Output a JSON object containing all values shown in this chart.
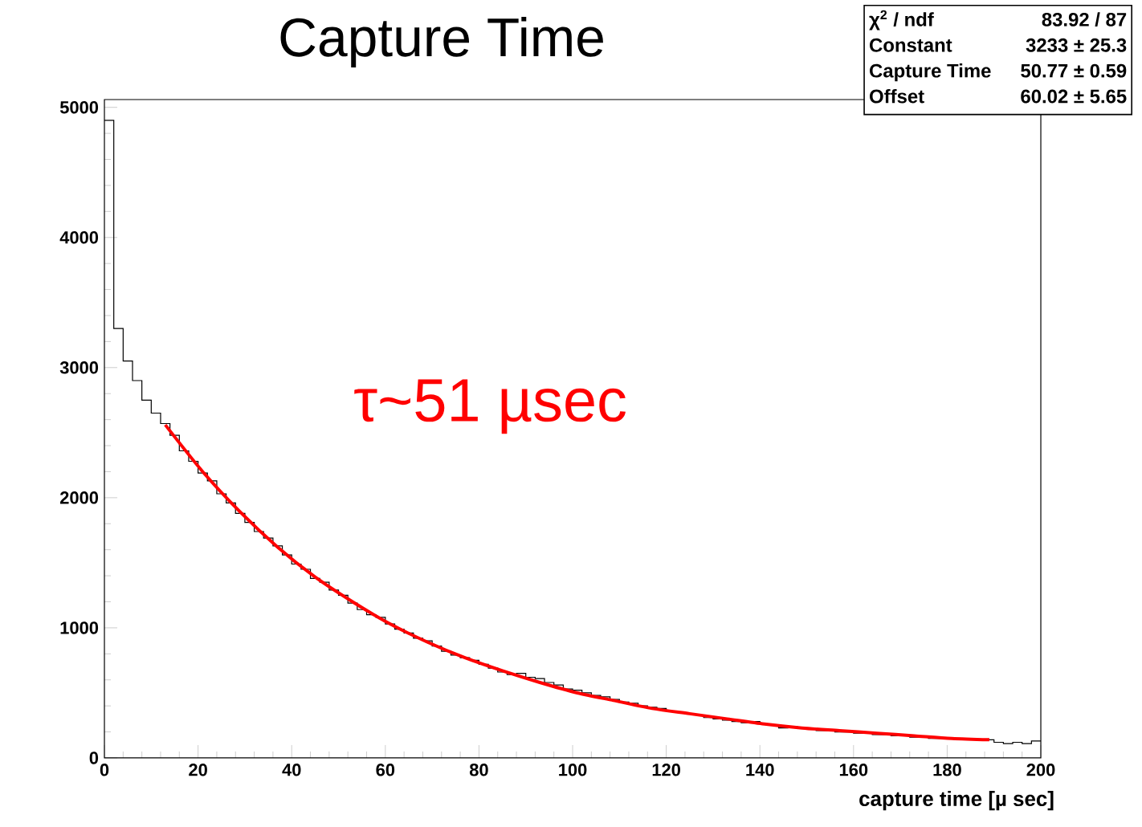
{
  "chart_data": {
    "type": "histogram",
    "title": "Capture Time",
    "xlabel": "capture time [µ sec]",
    "xlim": [
      0,
      200
    ],
    "ylim": [
      0,
      5060
    ],
    "xticks": [
      0,
      20,
      40,
      60,
      80,
      100,
      120,
      140,
      160,
      180,
      200
    ],
    "yticks": [
      0,
      1000,
      2000,
      3000,
      4000,
      5000
    ],
    "series": [
      {
        "color": "#000000",
        "bins": [
          0,
          2,
          4,
          6,
          8,
          10,
          12,
          14,
          16,
          18,
          20,
          22,
          24,
          26,
          28,
          30,
          32,
          34,
          36,
          38,
          40,
          42,
          44,
          46,
          48,
          50,
          52,
          54,
          56,
          58,
          60,
          62,
          64,
          66,
          68,
          70,
          72,
          74,
          76,
          78,
          80,
          82,
          84,
          86,
          88,
          90,
          92,
          94,
          96,
          98,
          100,
          102,
          104,
          106,
          108,
          110,
          112,
          114,
          116,
          118,
          120,
          122,
          124,
          126,
          128,
          130,
          132,
          134,
          136,
          138,
          140,
          142,
          144,
          146,
          148,
          150,
          152,
          154,
          156,
          158,
          160,
          162,
          164,
          166,
          168,
          170,
          172,
          174,
          176,
          178,
          180,
          182,
          184,
          186,
          188,
          190,
          192,
          194,
          196,
          198,
          200
        ],
        "values": [
          4900,
          3300,
          3050,
          2900,
          2750,
          2650,
          2570,
          2480,
          2360,
          2280,
          2190,
          2130,
          2030,
          1960,
          1880,
          1810,
          1740,
          1690,
          1630,
          1560,
          1490,
          1450,
          1380,
          1350,
          1290,
          1250,
          1190,
          1140,
          1100,
          1080,
          1030,
          990,
          960,
          920,
          900,
          860,
          820,
          790,
          770,
          750,
          720,
          690,
          660,
          640,
          650,
          620,
          610,
          580,
          560,
          530,
          520,
          500,
          480,
          470,
          450,
          430,
          420,
          400,
          390,
          380,
          360,
          350,
          340,
          330,
          310,
          300,
          290,
          280,
          270,
          280,
          260,
          250,
          230,
          240,
          230,
          220,
          210,
          210,
          200,
          200,
          190,
          190,
          180,
          180,
          170,
          170,
          160,
          160,
          150,
          150,
          150,
          150,
          140,
          140,
          140,
          120,
          110,
          120,
          110,
          130
        ]
      },
      {
        "type": "line",
        "color": "#ff0000",
        "x": [
          13,
          21,
          29,
          37,
          45,
          53,
          61,
          69,
          77,
          85,
          93,
          101,
          109,
          117,
          125,
          133,
          141,
          149,
          157,
          165,
          173,
          181,
          189
        ],
        "values": [
          2560,
          2200,
          1890,
          1620,
          1390,
          1200,
          1030,
          890,
          770,
          670,
          580,
          500,
          440,
          380,
          340,
          300,
          260,
          230,
          210,
          190,
          170,
          150,
          140
        ]
      }
    ],
    "annotations": [
      "τ~51 µsec",
      "χ$^{2}$ / ndf",
      "83.92 / 87",
      "Constant",
      "3233 ± 25.3",
      "Capture Time",
      "50.77 ± 0.59",
      "Offset",
      "60.02 ± 5.65"
    ]
  }
}
